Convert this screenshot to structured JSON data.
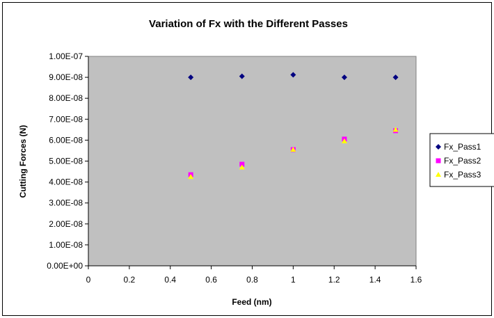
{
  "chart_data": {
    "type": "scatter",
    "title": "Variation of Fx with the Different Passes",
    "xlabel": "Feed (nm)",
    "ylabel": "Cutting Forces (N)",
    "xlim": [
      0,
      1.6
    ],
    "ylim": [
      0,
      1e-07
    ],
    "x_ticks": [
      "0",
      "0.2",
      "0.4",
      "0.6",
      "0.8",
      "1",
      "1.2",
      "1.4",
      "1.6"
    ],
    "y_ticks": [
      "0.00E+00",
      "1.00E-08",
      "2.00E-08",
      "3.00E-08",
      "4.00E-08",
      "5.00E-08",
      "6.00E-08",
      "7.00E-08",
      "8.00E-08",
      "9.00E-08",
      "1.00E-07"
    ],
    "grid": false,
    "plot_background": "#c0c0c0",
    "legend_position": "right",
    "x": [
      0.5,
      0.75,
      1.0,
      1.25,
      1.5
    ],
    "series": [
      {
        "name": "Fx_Pass1",
        "marker": "diamond",
        "color": "#000080",
        "values": [
          9e-08,
          9.05e-08,
          9.12e-08,
          9e-08,
          9e-08
        ]
      },
      {
        "name": "Fx_Pass2",
        "marker": "square",
        "color": "#ff00ff",
        "values": [
          4.35e-08,
          4.85e-08,
          5.55e-08,
          6.05e-08,
          6.45e-08
        ]
      },
      {
        "name": "Fx_Pass3",
        "marker": "triangle",
        "color": "#ffff00",
        "values": [
          4.25e-08,
          4.7e-08,
          5.55e-08,
          5.95e-08,
          6.5e-08
        ]
      }
    ]
  }
}
